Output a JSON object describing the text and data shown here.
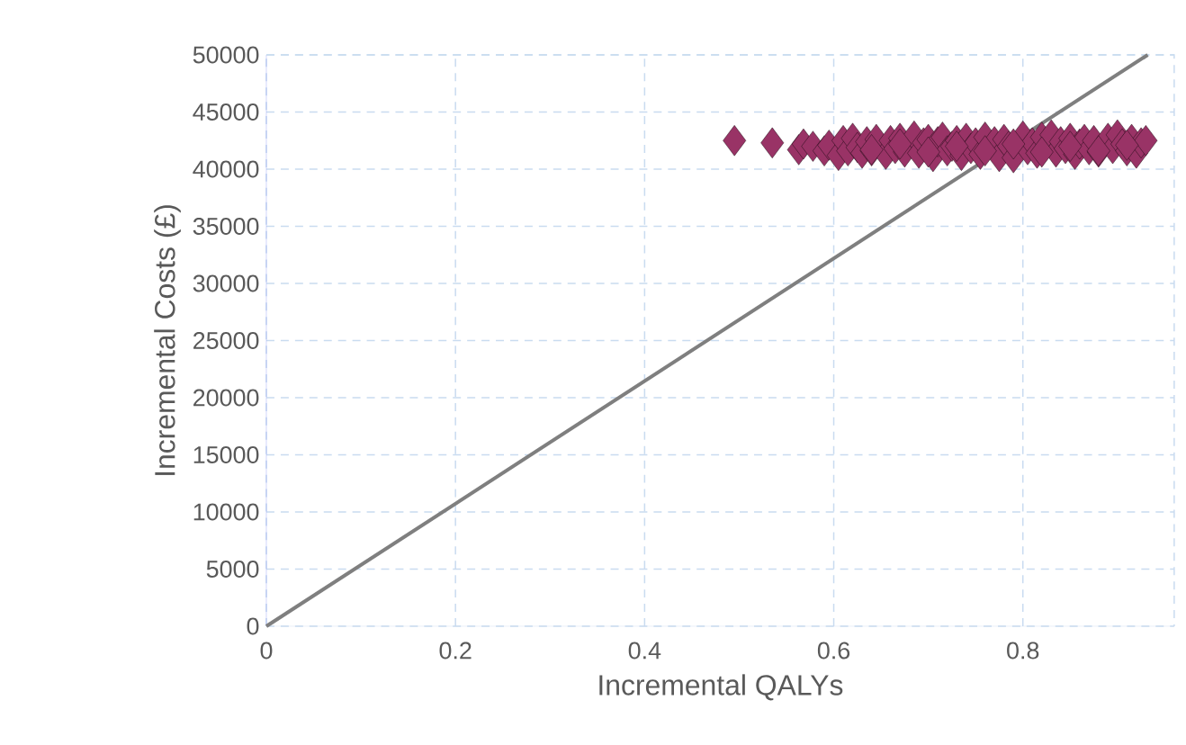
{
  "chart_data": {
    "type": "scatter",
    "xlabel": "Incremental QALYs",
    "ylabel": "Incremental Costs (£)",
    "xlim": [
      0,
      0.96
    ],
    "ylim": [
      0,
      50000
    ],
    "xticks": [
      0,
      {
        "value": 0.2,
        "label": "0.2"
      },
      {
        "value": 0.4,
        "label": "0.4"
      },
      {
        "value": 0.6,
        "label": "0.6"
      },
      {
        "value": 0.8,
        "label": "0.8"
      }
    ],
    "yticks": [
      0,
      5000,
      10000,
      15000,
      20000,
      25000,
      30000,
      35000,
      40000,
      45000,
      50000
    ],
    "grid": true,
    "marker": "diamond",
    "series": [
      {
        "color": "#993366",
        "x": [
          0.495,
          0.535,
          0.563,
          0.568,
          0.578,
          0.59,
          0.595,
          0.605,
          0.61,
          0.615,
          0.62,
          0.625,
          0.63,
          0.635,
          0.64,
          0.645,
          0.655,
          0.66,
          0.665,
          0.67,
          0.675,
          0.685,
          0.69,
          0.695,
          0.7,
          0.705,
          0.71,
          0.715,
          0.72,
          0.725,
          0.73,
          0.735,
          0.74,
          0.745,
          0.75,
          0.755,
          0.76,
          0.77,
          0.775,
          0.78,
          0.785,
          0.79,
          0.8,
          0.805,
          0.81,
          0.815,
          0.82,
          0.83,
          0.835,
          0.84,
          0.845,
          0.85,
          0.855,
          0.86,
          0.865,
          0.87,
          0.875,
          0.88,
          0.89,
          0.895,
          0.9,
          0.905,
          0.91,
          0.915,
          0.92,
          0.925,
          0.93,
          0.64,
          0.7,
          0.76,
          0.82,
          0.88,
          0.67,
          0.73,
          0.79,
          0.85,
          0.91
        ],
        "values": [
          42500,
          42300,
          41700,
          42200,
          42000,
          41600,
          42100,
          41200,
          42500,
          41600,
          42700,
          41900,
          41400,
          42400,
          41600,
          42600,
          41300,
          42500,
          41800,
          42700,
          41500,
          42900,
          41400,
          42300,
          42600,
          41100,
          42400,
          42800,
          41600,
          42000,
          42500,
          41200,
          42700,
          41800,
          42300,
          41300,
          42800,
          42400,
          41100,
          42600,
          42000,
          41000,
          42900,
          41700,
          42300,
          41400,
          42800,
          43000,
          41500,
          42400,
          41800,
          42700,
          41300,
          42200,
          42600,
          41700,
          42500,
          41500,
          42700,
          41800,
          43000,
          42200,
          41600,
          42600,
          41400,
          42300,
          42500,
          41700,
          41500,
          41600,
          41500,
          41600,
          42200,
          42000,
          42200,
          42000,
          42100
        ]
      },
      {
        "type": "line",
        "color": "#7f7f7f",
        "marker": "none",
        "x": [
          0,
          0.932
        ],
        "values": [
          0,
          50000
        ]
      }
    ]
  }
}
